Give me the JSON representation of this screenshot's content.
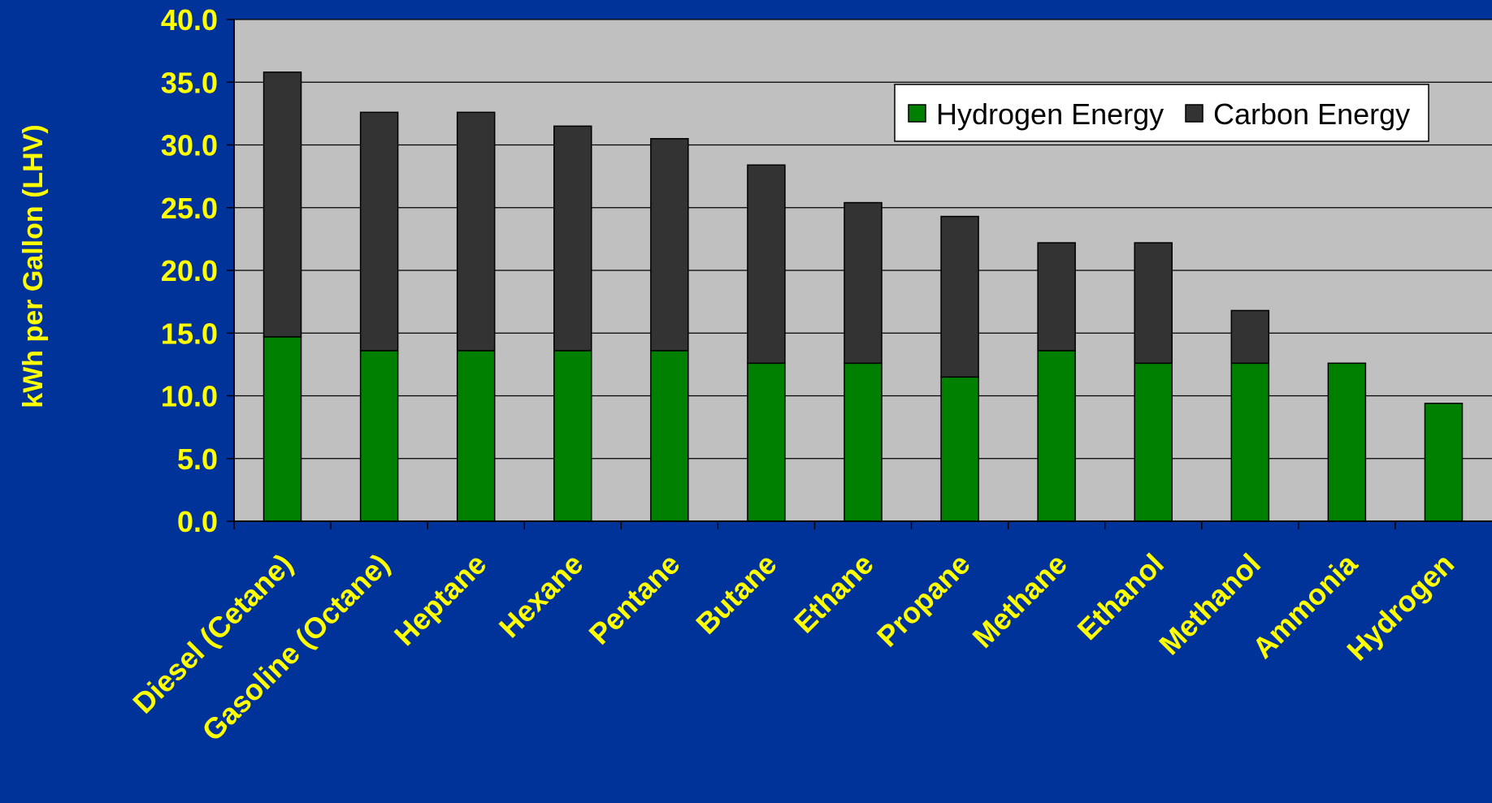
{
  "chart_data": {
    "type": "bar",
    "stacked": true,
    "ylabel": "kWh per Gallon (LHV)",
    "ylim": [
      0,
      40
    ],
    "ytick_step": 5,
    "ytick_labels": [
      "0.0",
      "5.0",
      "10.0",
      "15.0",
      "20.0",
      "25.0",
      "30.0",
      "35.0",
      "40.0"
    ],
    "grid": true,
    "legend_position": "top-right",
    "categories": [
      "Diesel (Cetane)",
      "Gasoline (Octane)",
      "Heptane",
      "Hexane",
      "Pentane",
      "Butane",
      "Ethane",
      "Propane",
      "Methane",
      "Ethanol",
      "Methanol",
      "Ammonia",
      "Hydrogen"
    ],
    "series": [
      {
        "name": "Hydrogen Energy",
        "color": "#008000",
        "values": [
          14.7,
          13.6,
          13.6,
          13.6,
          13.6,
          12.6,
          12.6,
          11.5,
          13.6,
          12.6,
          12.6,
          12.6,
          9.4
        ]
      },
      {
        "name": "Carbon Energy",
        "color": "#333333",
        "values": [
          21.1,
          19.0,
          19.0,
          17.9,
          16.9,
          15.8,
          12.8,
          12.8,
          8.6,
          9.6,
          4.2,
          0,
          0
        ]
      }
    ],
    "colors": {
      "background": "#003399",
      "plot_area": "#C0C0C0",
      "text": "#FFFF00",
      "gridline": "#000000"
    }
  }
}
